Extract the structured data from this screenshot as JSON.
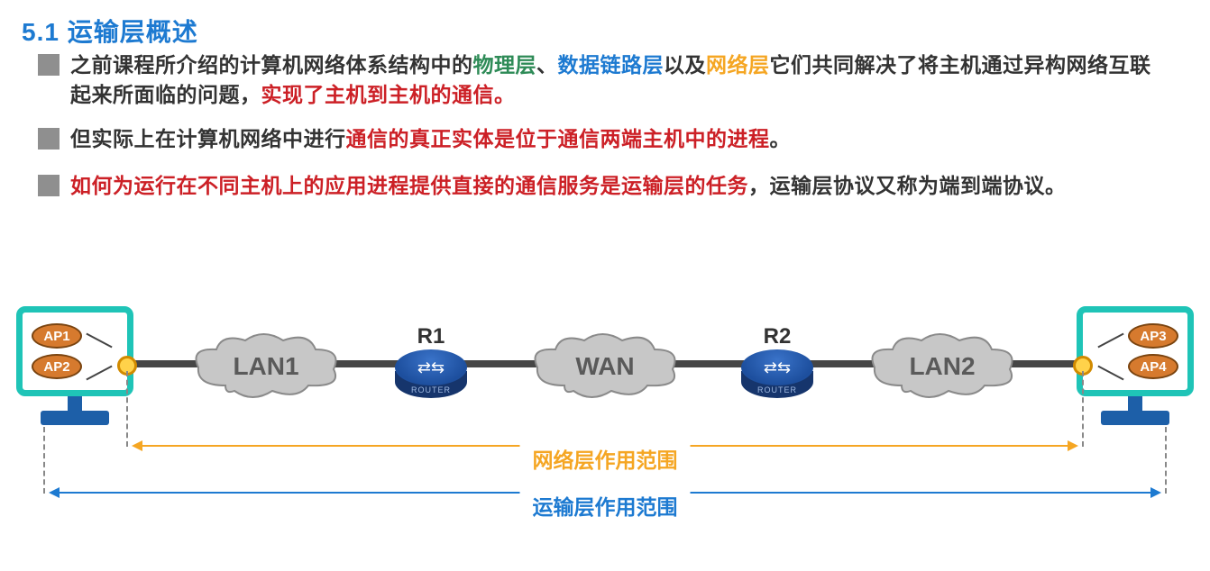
{
  "title": "5.1 运输层概述",
  "colors": {
    "title_blue": "#1d7ad1",
    "bullet_gray": "#8f8f8f",
    "text_black": "#333333",
    "green": "#2e8b57",
    "blue": "#1d7ad1",
    "orange": "#f5a623",
    "red": "#cc2026",
    "monitor_teal": "#1fc4b7",
    "stand_blue": "#1d5fa8",
    "ap_fill": "#d67a2e",
    "ap_border": "#7a4410",
    "port_fill": "#ffd24a",
    "port_border": "#d18a00",
    "cloud_fill": "#bfbfbf",
    "cloud_stroke": "#8a8a8a",
    "cloud_text": "#5a5a5a",
    "router_top": "#2a5fb2",
    "router_side": "#16356c",
    "line_dark": "#464646",
    "dash_gray": "#888888"
  },
  "bullets": [
    {
      "segments": [
        {
          "t": "之前课程所介绍的计算机网络体系结构中的"
        },
        {
          "t": "物理层",
          "c": "green"
        },
        {
          "t": "、"
        },
        {
          "t": "数据链路层",
          "c": "blue"
        },
        {
          "t": "以及"
        },
        {
          "t": "网络层",
          "c": "orange"
        },
        {
          "t": "它们共同解决了将主机通过异构网络互联起来所面临的问题，"
        },
        {
          "t": "实现了主机到主机的通信。",
          "c": "red"
        }
      ]
    },
    {
      "segments": [
        {
          "t": "但实际上在计算机网络中进行"
        },
        {
          "t": "通信的真正实体是位于通信两端主机中的进程",
          "c": "red"
        },
        {
          "t": "。"
        }
      ]
    },
    {
      "segments": [
        {
          "t": "如何为运行在不同主机上的应用进程提供直接的通信服务是运输层的任务",
          "c": "red"
        },
        {
          "t": "，运输层协议又称为端到端协议。"
        }
      ]
    }
  ],
  "diagram": {
    "left_host": {
      "ap_top": "AP1",
      "ap_bottom": "AP2"
    },
    "right_host": {
      "ap_top": "AP3",
      "ap_bottom": "AP4"
    },
    "clouds": {
      "lan1": "LAN1",
      "wan": "WAN",
      "lan2": "LAN2"
    },
    "routers": {
      "r1": "R1",
      "r2": "R2",
      "sub": "ROUTER"
    },
    "ranges": {
      "network": {
        "label": "网络层作用范围",
        "color": "#f5a623"
      },
      "transport": {
        "label": "运输层作用范围",
        "color": "#1d7ad1"
      }
    }
  }
}
